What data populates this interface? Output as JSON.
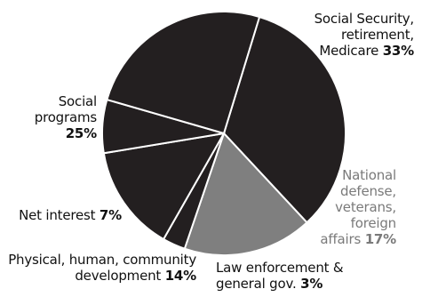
{
  "chart_data": {
    "type": "pie",
    "title": "",
    "slices": [
      {
        "label_lines": [
          "Social Security,",
          "retirement,",
          "Medicare"
        ],
        "pct_text": "33%",
        "value": 33,
        "color": "#231f20"
      },
      {
        "label_lines": [
          "National",
          "defense,",
          "veterans,",
          "foreign",
          "affairs"
        ],
        "pct_text": "17%",
        "value": 17,
        "color": "#7f7f7f"
      },
      {
        "label_lines": [
          "Law enforcement &",
          "general gov."
        ],
        "pct_text": "3%",
        "value": 3,
        "color": "#231f20"
      },
      {
        "label_lines": [
          "Physical, human, community",
          "development"
        ],
        "pct_text": "14%",
        "value": 14,
        "color": "#231f20"
      },
      {
        "label_lines": [
          "Net interest"
        ],
        "pct_text": "7%",
        "value": 7,
        "color": "#231f20"
      },
      {
        "label_lines": [
          "Social",
          "programs"
        ],
        "pct_text": "25%",
        "value": 25,
        "color": "#231f20"
      }
    ],
    "start_angle_deg": -73,
    "direction": "clockwise",
    "separator_color": "#ffffff"
  }
}
